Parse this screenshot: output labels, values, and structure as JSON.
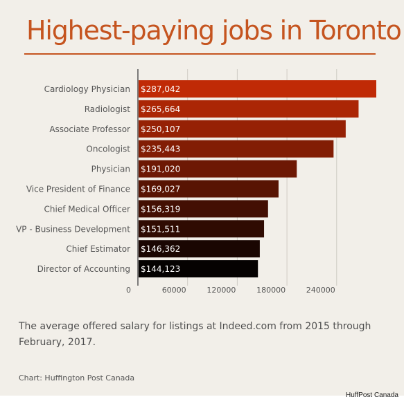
{
  "title": "Highest-paying jobs in Toronto",
  "caption": "The average offered salary for listings at Indeed.com from 2015 through February, 2017.",
  "credit": "Chart: Huffington Post Canada",
  "footer": "HuffPost Canada",
  "colors": {
    "accent": "#c5541f",
    "bar_top": "#c02a06",
    "bar_bottom": "#050201",
    "background": "#f2efe9"
  },
  "chart_data": {
    "type": "bar",
    "orientation": "horizontal",
    "title": "",
    "xlabel": "",
    "ylabel": "",
    "categories": [
      "Cardiology Physician",
      "Radiologist",
      "Associate Professor",
      "Oncologist",
      "Physician",
      "Vice President of Finance",
      "Chief Medical Officer",
      "VP - Business Development",
      "Chief Estimator",
      "Director of Accounting"
    ],
    "values": [
      287042,
      265664,
      250107,
      235443,
      191020,
      169027,
      156319,
      151511,
      146362,
      144123
    ],
    "data_labels": [
      "$287,042",
      "$265,664",
      "$250,107",
      "$235,443",
      "$191,020",
      "$169,027",
      "$156,319",
      "$151,511",
      "$146,362",
      "$144,123"
    ],
    "x_ticks": [
      0,
      60000,
      120000,
      180000,
      240000
    ],
    "x_tick_labels": [
      "0",
      "60000",
      "120000",
      "180000",
      "240000"
    ],
    "xlim": [
      0,
      287042
    ],
    "grid": true
  }
}
